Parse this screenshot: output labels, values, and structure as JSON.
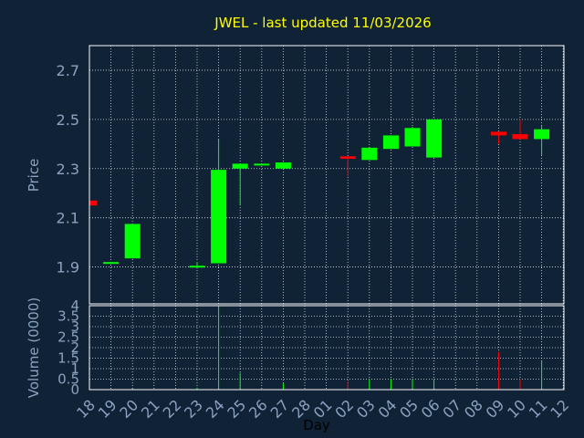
{
  "chart_data": {
    "type": "candlestick",
    "title": "JWEL - last updated 11/03/2026",
    "ylabel": "Price",
    "volume_label": "Volume (0000)",
    "xlabel": "Day",
    "price_ylim": [
      1.75,
      2.8
    ],
    "price_ticks": [
      "1.9",
      "2.1",
      "2.3",
      "2.5",
      "2.7"
    ],
    "volume_ylim": [
      0,
      4
    ],
    "volume_ticks": [
      "0",
      "0.5",
      "1",
      "1.5",
      "2",
      "2.5",
      "3",
      "3.5",
      "4"
    ],
    "x_ticks": [
      "18",
      "19",
      "20",
      "21",
      "22",
      "23",
      "24",
      "25",
      "26",
      "27",
      "28",
      "01",
      "02",
      "03",
      "04",
      "05",
      "06",
      "07",
      "08",
      "09",
      "10",
      "11",
      "12"
    ],
    "up_color": "#00ff00",
    "down_color": "#ff0000",
    "candles": [
      {
        "day": "18",
        "open": 2.17,
        "high": 2.17,
        "low": 2.15,
        "close": 2.15,
        "volume": 0.0
      },
      {
        "day": "19",
        "open": 1.915,
        "high": 1.92,
        "low": 1.915,
        "close": 1.92,
        "volume": 0.0
      },
      {
        "day": "20",
        "open": 1.935,
        "high": 2.075,
        "low": 1.935,
        "close": 2.075,
        "volume": 0.05
      },
      {
        "day": "23",
        "open": 1.9,
        "high": 1.92,
        "low": 1.9,
        "close": 1.905,
        "volume": 0.1
      },
      {
        "day": "24",
        "open": 1.915,
        "high": 2.42,
        "low": 1.915,
        "close": 2.295,
        "volume": 4.0
      },
      {
        "day": "25",
        "open": 2.3,
        "high": 2.32,
        "low": 2.15,
        "close": 2.32,
        "volume": 0.8
      },
      {
        "day": "26",
        "open": 2.315,
        "high": 2.32,
        "low": 2.315,
        "close": 2.32,
        "volume": 0.0
      },
      {
        "day": "27",
        "open": 2.3,
        "high": 2.325,
        "low": 2.3,
        "close": 2.325,
        "volume": 0.3
      },
      {
        "day": "02",
        "open": 2.35,
        "high": 2.35,
        "low": 2.27,
        "close": 2.34,
        "volume": 0.4
      },
      {
        "day": "03",
        "open": 2.335,
        "high": 2.385,
        "low": 2.335,
        "close": 2.385,
        "volume": 0.5
      },
      {
        "day": "04",
        "open": 2.38,
        "high": 2.435,
        "low": 2.38,
        "close": 2.435,
        "volume": 0.5
      },
      {
        "day": "05",
        "open": 2.39,
        "high": 2.47,
        "low": 2.39,
        "close": 2.465,
        "volume": 0.5
      },
      {
        "day": "06",
        "open": 2.345,
        "high": 2.5,
        "low": 2.345,
        "close": 2.5,
        "volume": 0.5
      },
      {
        "day": "09",
        "open": 2.45,
        "high": 2.45,
        "low": 2.4,
        "close": 2.435,
        "volume": 1.8
      },
      {
        "day": "10",
        "open": 2.44,
        "high": 2.5,
        "low": 2.42,
        "close": 2.42,
        "volume": 0.5
      },
      {
        "day": "11",
        "open": 2.42,
        "high": 2.475,
        "low": 2.355,
        "close": 2.46,
        "volume": 1.4
      }
    ]
  }
}
